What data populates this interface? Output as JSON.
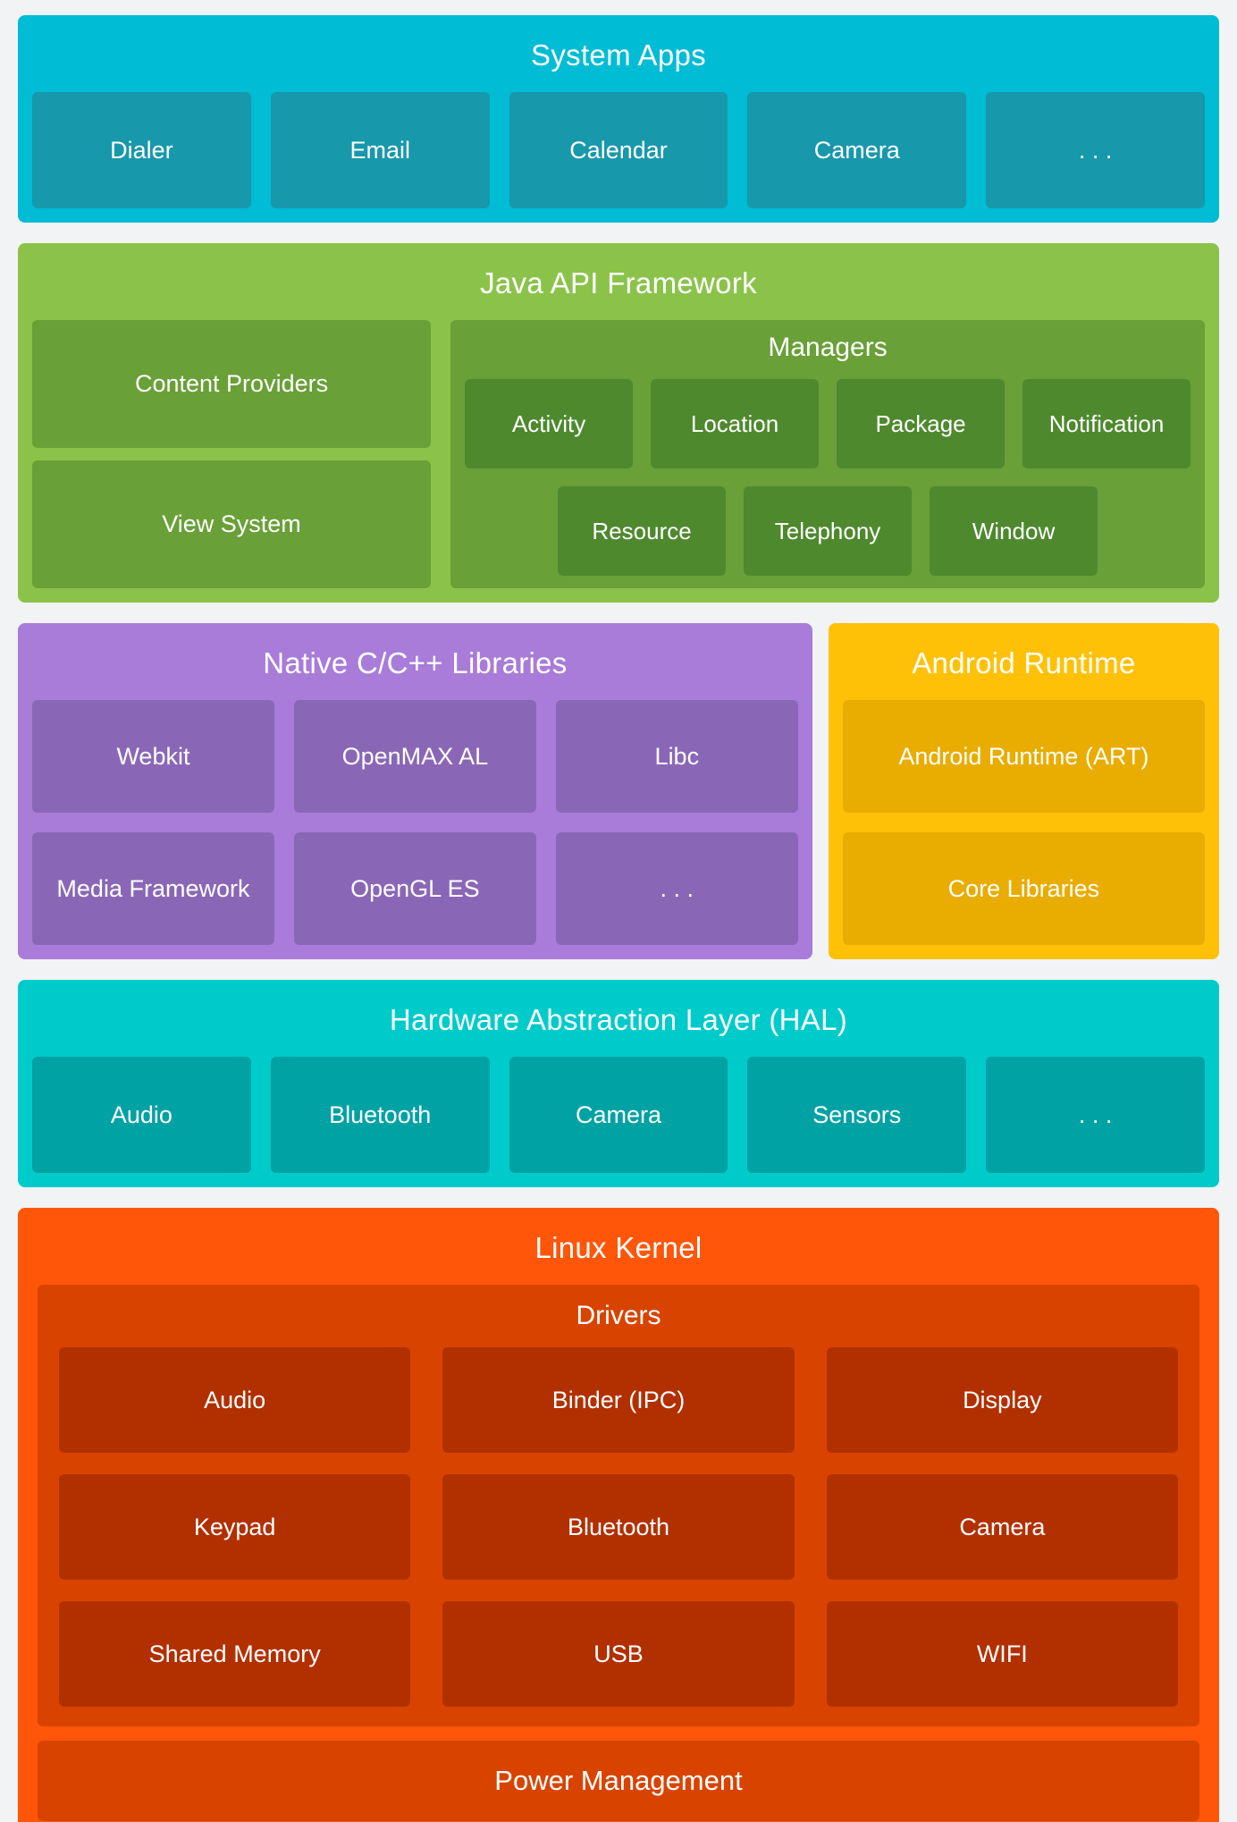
{
  "page": {
    "background": "#F1F3F4",
    "text_color": "#FFFFFF"
  },
  "sections": {
    "system_apps": {
      "title": "System Apps",
      "colors": {
        "bg": "#00BCD4",
        "box": "#1898AB"
      },
      "boxes": [
        "Dialer",
        "Email",
        "Calendar",
        "Camera",
        ". . ."
      ]
    },
    "java_api": {
      "title": "Java API Framework",
      "colors": {
        "bg": "#8BC34A",
        "mid": "#69A037",
        "dark": "#4E892E"
      },
      "left_boxes": [
        "Content Providers",
        "View System"
      ],
      "managers": {
        "title": "Managers",
        "row1": [
          "Activity",
          "Location",
          "Package",
          "Notification"
        ],
        "row2": [
          "Resource",
          "Telephony",
          "Window"
        ]
      }
    },
    "native_libs": {
      "title": "Native C/C++ Libraries",
      "colors": {
        "bg": "#A87CD8",
        "box": "#8A67B6"
      },
      "boxes": [
        "Webkit",
        "OpenMAX AL",
        "Libc",
        "Media Framework",
        "OpenGL ES",
        ". . ."
      ]
    },
    "android_runtime": {
      "title": "Android Runtime",
      "colors": {
        "bg": "#FFC107",
        "box": "#E9AC00"
      },
      "boxes": [
        "Android Runtime (ART)",
        "Core Libraries"
      ]
    },
    "hal": {
      "title": "Hardware Abstraction Layer (HAL)",
      "colors": {
        "bg": "#00CBCB",
        "box": "#00A2A4"
      },
      "boxes": [
        "Audio",
        "Bluetooth",
        "Camera",
        "Sensors",
        ". . ."
      ]
    },
    "linux_kernel": {
      "title": "Linux Kernel",
      "colors": {
        "bg": "#FF560A",
        "mid": "#D84400",
        "dark": "#B23000"
      },
      "drivers": {
        "title": "Drivers",
        "rows": [
          [
            "Audio",
            "Binder (IPC)",
            "Display"
          ],
          [
            "Keypad",
            "Bluetooth",
            "Camera"
          ],
          [
            "Shared Memory",
            "USB",
            "WIFI"
          ]
        ]
      },
      "power": "Power Management"
    }
  }
}
